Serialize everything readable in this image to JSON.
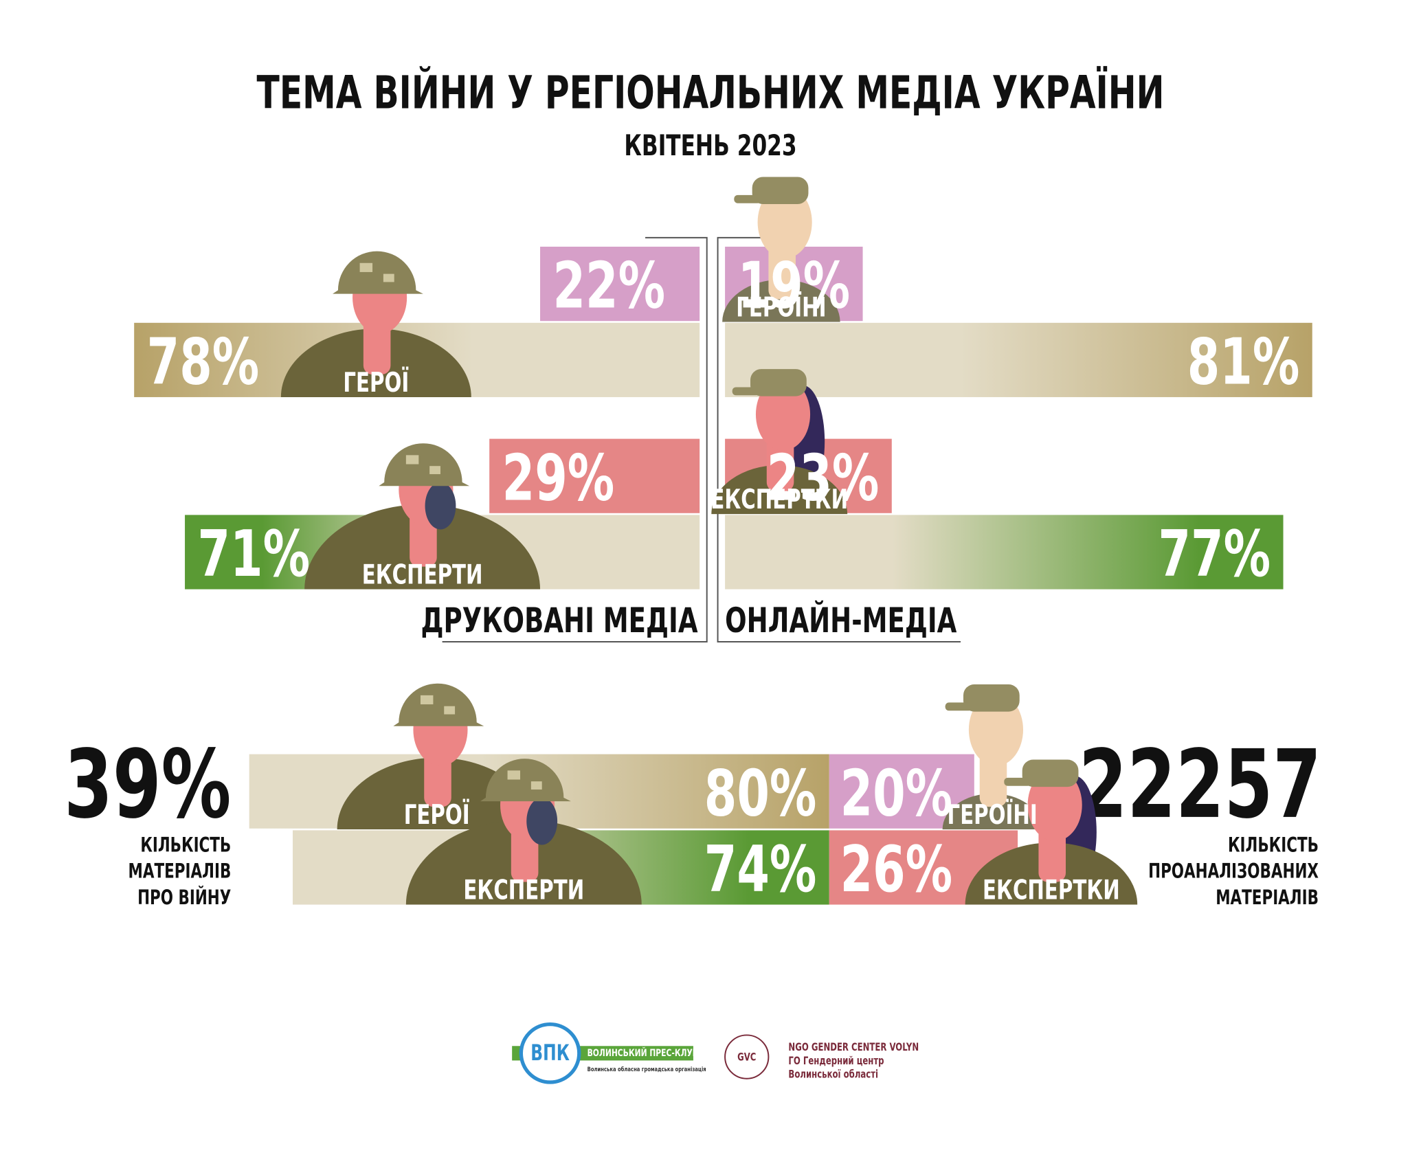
{
  "header": {
    "title": "ТЕМА ВІЙНИ У РЕГІОНАЛЬНИХ МЕДІА УКРАЇНИ",
    "subtitle": "КВІТЕНЬ 2023"
  },
  "print_media": {
    "label": "ДРУКОВАНІ МЕДІА",
    "rows": [
      {
        "men": {
          "label": "ГЕРОЇ",
          "value": 78,
          "value_label": "78%"
        },
        "women": {
          "value": 22,
          "value_label": "22%"
        }
      },
      {
        "men": {
          "label": "ЕКСПЕРТИ",
          "value": 71,
          "value_label": "71%"
        },
        "women": {
          "value": 29,
          "value_label": "29%"
        }
      }
    ]
  },
  "online_media": {
    "label": "ОНЛАЙН-МЕДІА",
    "rows": [
      {
        "women": {
          "label": "ГЕРОЇНІ",
          "value": 19,
          "value_label": "19%"
        },
        "men": {
          "value": 81,
          "value_label": "81%"
        }
      },
      {
        "women": {
          "label": "ЕКСПЕРТКИ",
          "value": 23,
          "value_label": "23%"
        },
        "men": {
          "value": 77,
          "value_label": "77%"
        }
      }
    ]
  },
  "summary": {
    "rows": [
      {
        "men": {
          "label": "ГЕРОЇ",
          "value": 80,
          "value_label": "80%"
        },
        "women": {
          "label": "ГЕРОЇНІ",
          "value": 20,
          "value_label": "20%"
        }
      },
      {
        "men": {
          "label": "ЕКСПЕРТИ",
          "value": 74,
          "value_label": "74%"
        },
        "women": {
          "label": "ЕКСПЕРТКИ",
          "value": 26,
          "value_label": "26%"
        }
      }
    ],
    "share": {
      "value": 39,
      "value_label": "39%",
      "caption": [
        "КІЛЬКІСТЬ",
        "МАТЕРІАЛІВ",
        "ПРО ВІЙНУ"
      ]
    },
    "total": {
      "value": 22257,
      "caption": [
        "КІЛЬКІСТЬ",
        "ПРОАНАЛІЗОВАНИХ",
        "МАТЕРІАЛІВ"
      ]
    }
  },
  "footer": {
    "vpk": {
      "mark": "ВПК",
      "name": "ВОЛИНСЬКИЙ ПРЕС-КЛУБ",
      "subtitle": "Волинська обласна громадська організація"
    },
    "gvc": {
      "mark": "GVC",
      "lines": [
        "NGO GENDER CENTER VOLYN",
        "ГО Гендерний центр",
        "Волинської області"
      ]
    }
  }
}
